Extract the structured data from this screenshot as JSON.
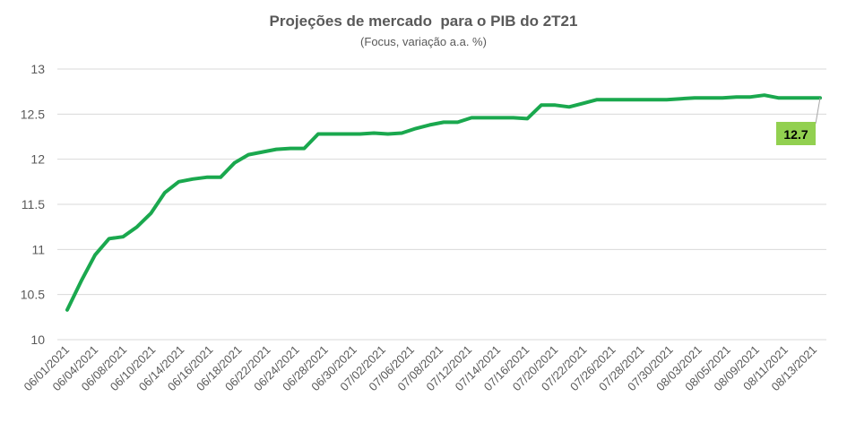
{
  "chart_data": {
    "type": "line",
    "title": "Projeções de mercado  para o PIB do 2T21",
    "subtitle": "(Focus, variação a.a. %)",
    "xlabel": "",
    "ylabel": "",
    "ylim": [
      10,
      13
    ],
    "yticks": [
      "10",
      "10.5",
      "11",
      "11.5",
      "12",
      "12.5",
      "13"
    ],
    "grid": true,
    "x_tick_labels": [
      "06/01/2021",
      "06/04/2021",
      "06/08/2021",
      "06/10/2021",
      "06/14/2021",
      "06/16/2021",
      "06/18/2021",
      "06/22/2021",
      "06/24/2021",
      "06/28/2021",
      "06/30/2021",
      "07/02/2021",
      "07/06/2021",
      "07/08/2021",
      "07/12/2021",
      "07/14/2021",
      "07/16/2021",
      "07/20/2021",
      "07/22/2021",
      "07/26/2021",
      "07/28/2021",
      "07/30/2021",
      "08/03/2021",
      "08/05/2021",
      "08/09/2021",
      "08/11/2021",
      "08/13/2021"
    ],
    "series": [
      {
        "color": "#1aa84e",
        "values": [
          10.33,
          10.65,
          10.94,
          11.12,
          11.14,
          11.25,
          11.4,
          11.63,
          11.75,
          11.78,
          11.8,
          11.8,
          11.96,
          12.05,
          12.08,
          12.11,
          12.12,
          12.12,
          12.28,
          12.28,
          12.28,
          12.28,
          12.29,
          12.28,
          12.29,
          12.34,
          12.38,
          12.41,
          12.41,
          12.46,
          12.46,
          12.46,
          12.46,
          12.45,
          12.6,
          12.6,
          12.58,
          12.62,
          12.66,
          12.66,
          12.66,
          12.66,
          12.66,
          12.66,
          12.67,
          12.68,
          12.68,
          12.68,
          12.69,
          12.69,
          12.71,
          12.68,
          12.68,
          12.68,
          12.68
        ]
      }
    ],
    "annotation": {
      "text": "12.7",
      "color": "#92d050"
    }
  }
}
